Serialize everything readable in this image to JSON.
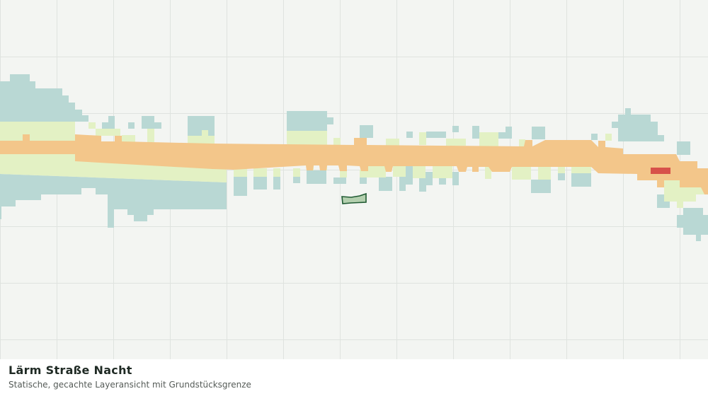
{
  "legend_panel": {
    "title": "Lärm Straße Nacht",
    "subtitle": "Statische, gecachte Layeransicht mit Grundstücksgrenze"
  }
}
